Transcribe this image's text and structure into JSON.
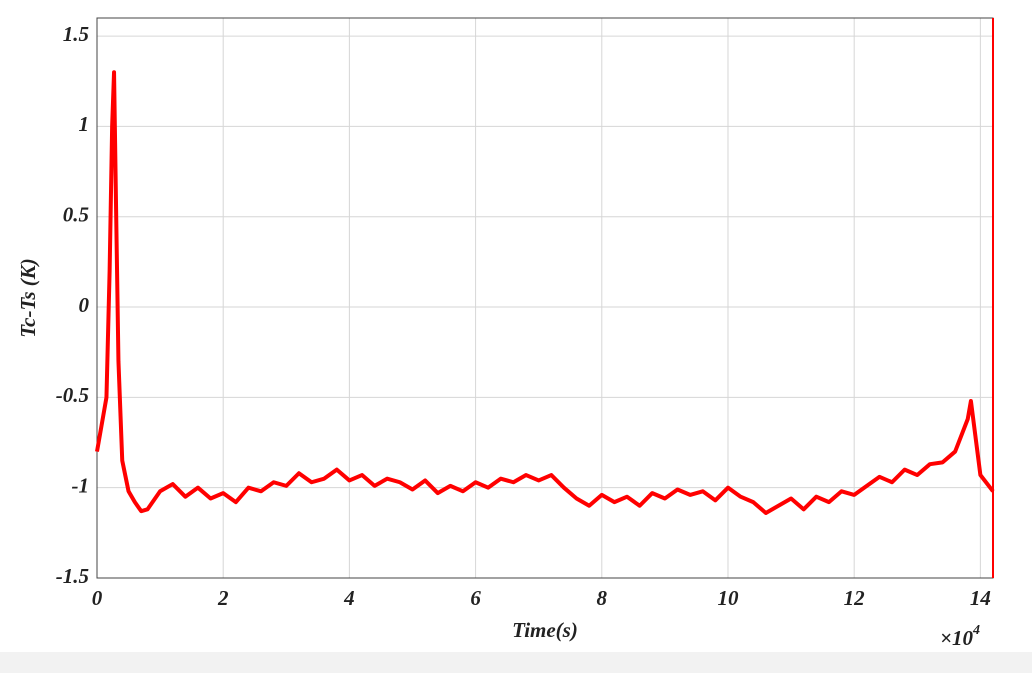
{
  "chart_data": {
    "type": "line",
    "x_label": "Time(s)",
    "y_label": "Tc-Ts (K)",
    "x_multiplier": {
      "base": "×10",
      "exponent": "4"
    },
    "x": [
      0,
      0.05,
      0.1,
      0.15,
      0.2,
      0.24,
      0.27,
      0.3,
      0.34,
      0.4,
      0.5,
      0.6,
      0.7,
      0.8,
      1.0,
      1.2,
      1.4,
      1.6,
      1.8,
      2.0,
      2.2,
      2.4,
      2.6,
      2.8,
      3.0,
      3.2,
      3.4,
      3.6,
      3.8,
      4.0,
      4.2,
      4.4,
      4.6,
      4.8,
      5.0,
      5.2,
      5.4,
      5.6,
      5.8,
      6.0,
      6.2,
      6.4,
      6.6,
      6.8,
      7.0,
      7.2,
      7.4,
      7.6,
      7.8,
      8.0,
      8.2,
      8.4,
      8.6,
      8.8,
      9.0,
      9.2,
      9.4,
      9.6,
      9.8,
      10.0,
      10.2,
      10.4,
      10.6,
      10.8,
      11.0,
      11.2,
      11.4,
      11.6,
      11.8,
      12.0,
      12.2,
      12.4,
      12.6,
      12.8,
      13.0,
      13.2,
      13.4,
      13.6,
      13.8,
      13.85,
      14.0,
      14.2
    ],
    "series": [
      {
        "name": "Tc-Ts",
        "color": "#ff0000",
        "values": [
          -0.8,
          -0.7,
          -0.6,
          -0.5,
          0.2,
          1.0,
          1.3,
          0.6,
          -0.3,
          -0.85,
          -1.02,
          -1.08,
          -1.13,
          -1.12,
          -1.02,
          -0.98,
          -1.05,
          -1.0,
          -1.06,
          -1.03,
          -1.08,
          -1.0,
          -1.02,
          -0.97,
          -0.99,
          -0.92,
          -0.97,
          -0.95,
          -0.9,
          -0.96,
          -0.93,
          -0.99,
          -0.95,
          -0.97,
          -1.01,
          -0.96,
          -1.03,
          -0.99,
          -1.02,
          -0.97,
          -1.0,
          -0.95,
          -0.97,
          -0.93,
          -0.96,
          -0.93,
          -1.0,
          -1.06,
          -1.1,
          -1.04,
          -1.08,
          -1.05,
          -1.1,
          -1.03,
          -1.06,
          -1.01,
          -1.04,
          -1.02,
          -1.07,
          -1.0,
          -1.05,
          -1.08,
          -1.14,
          -1.1,
          -1.06,
          -1.12,
          -1.05,
          -1.08,
          -1.02,
          -1.04,
          -0.99,
          -0.94,
          -0.97,
          -0.9,
          -0.93,
          -0.87,
          -0.86,
          -0.8,
          -0.62,
          -0.52,
          -0.93,
          -1.02
        ]
      }
    ],
    "xlim": [
      0,
      14.2
    ],
    "ylim": [
      -1.5,
      1.6
    ],
    "xticks": [
      0,
      2,
      4,
      6,
      8,
      10,
      12,
      14
    ],
    "yticks": [
      -1.5,
      -1,
      -0.5,
      0,
      0.5,
      1,
      1.5
    ],
    "grid": true
  }
}
